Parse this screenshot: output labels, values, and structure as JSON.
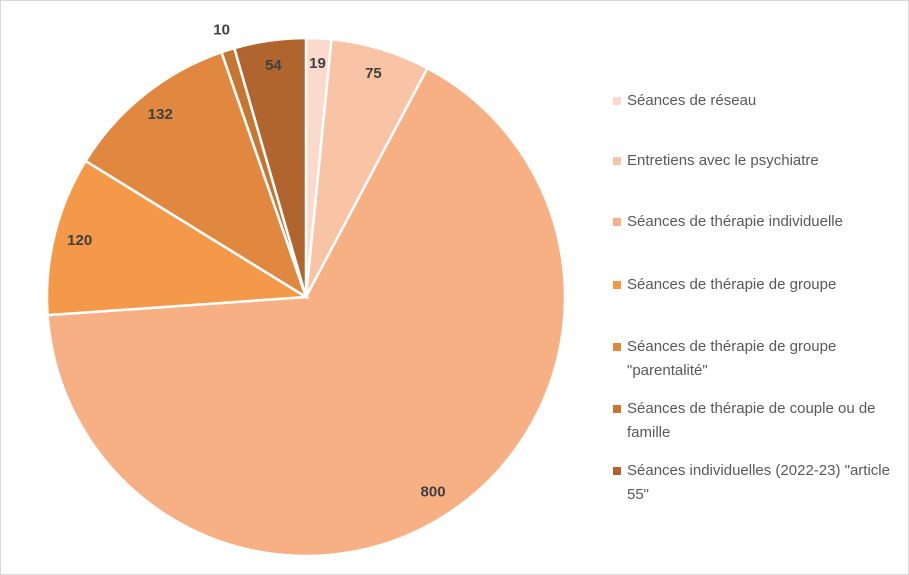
{
  "chart_data": {
    "type": "pie",
    "categories": [
      "Séances de réseau",
      "Entretiens avec le psychiatre",
      "Séances de thérapie individuelle",
      "Séances de thérapie de groupe",
      "Séances de thérapie de groupe \"parentalité\"",
      "Séances de thérapie de couple ou de famille",
      "Séances individuelles (2022-23) \"article 55\""
    ],
    "values": [
      19,
      75,
      800,
      120,
      132,
      10,
      54
    ],
    "colors": [
      "#fbd9cd",
      "#f9c3a6",
      "#f7af84",
      "#f4984a",
      "#e0883f",
      "#c77533",
      "#b0652f"
    ],
    "legend": "right"
  }
}
